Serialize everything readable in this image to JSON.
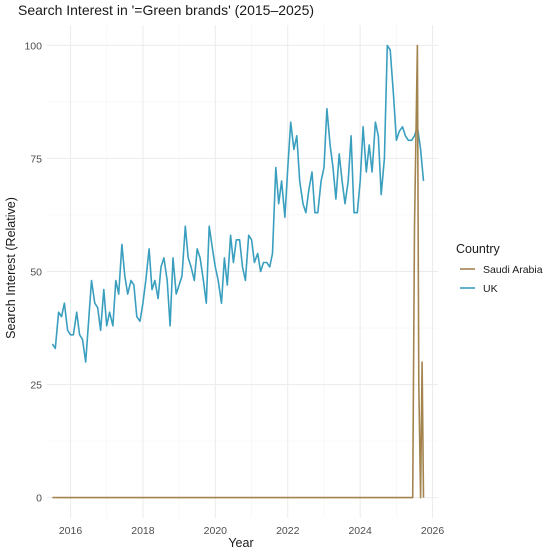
{
  "chart_data": {
    "type": "line",
    "title": "Search Interest in '=Green brands' (2015–2025)",
    "xlabel": "Year",
    "ylabel": "Search Interest (Relative)",
    "xlim": [
      2015.35,
      2026.15
    ],
    "ylim": [
      -4.5,
      104.5
    ],
    "x_ticks": [
      2016,
      2018,
      2020,
      2022,
      2024,
      2026
    ],
    "y_ticks": [
      0,
      25,
      50,
      75,
      100
    ],
    "grid": true,
    "legend": {
      "title": "Country",
      "placement": "right"
    },
    "series": [
      {
        "name": "Saudi Arabia",
        "color": "#a3844e",
        "x": [
          2015.5,
          2025.45,
          2025.5,
          2025.58,
          2025.62,
          2025.67,
          2025.71,
          2025.75
        ],
        "y": [
          0,
          0,
          60,
          100,
          25,
          0,
          30,
          0
        ]
      },
      {
        "name": "UK",
        "color": "#3a9fbf",
        "x": [
          2015.5,
          2015.58,
          2015.67,
          2015.75,
          2015.83,
          2015.92,
          2016.0,
          2016.08,
          2016.17,
          2016.25,
          2016.33,
          2016.42,
          2016.5,
          2016.58,
          2016.67,
          2016.75,
          2016.83,
          2016.92,
          2017.0,
          2017.08,
          2017.17,
          2017.25,
          2017.33,
          2017.42,
          2017.5,
          2017.58,
          2017.67,
          2017.75,
          2017.83,
          2017.92,
          2018.0,
          2018.08,
          2018.17,
          2018.25,
          2018.33,
          2018.42,
          2018.5,
          2018.58,
          2018.67,
          2018.75,
          2018.83,
          2018.92,
          2019.0,
          2019.08,
          2019.17,
          2019.25,
          2019.33,
          2019.42,
          2019.5,
          2019.58,
          2019.67,
          2019.75,
          2019.83,
          2019.92,
          2020.0,
          2020.08,
          2020.17,
          2020.25,
          2020.33,
          2020.42,
          2020.5,
          2020.58,
          2020.67,
          2020.75,
          2020.83,
          2020.92,
          2021.0,
          2021.08,
          2021.17,
          2021.25,
          2021.33,
          2021.42,
          2021.5,
          2021.58,
          2021.67,
          2021.75,
          2021.83,
          2021.92,
          2022.0,
          2022.08,
          2022.17,
          2022.25,
          2022.33,
          2022.42,
          2022.5,
          2022.58,
          2022.67,
          2022.75,
          2022.83,
          2022.92,
          2023.0,
          2023.08,
          2023.17,
          2023.25,
          2023.33,
          2023.42,
          2023.5,
          2023.58,
          2023.67,
          2023.75,
          2023.83,
          2023.92,
          2024.0,
          2024.08,
          2024.17,
          2024.25,
          2024.33,
          2024.42,
          2024.5,
          2024.58,
          2024.67,
          2024.75,
          2024.83,
          2024.92,
          2025.0,
          2025.08,
          2025.17,
          2025.25,
          2025.33,
          2025.42,
          2025.5,
          2025.58,
          2025.67,
          2025.75
        ],
        "y": [
          34,
          33,
          41,
          40,
          43,
          37,
          36,
          36,
          41,
          36,
          35,
          30,
          39,
          48,
          43,
          42,
          37,
          46,
          38,
          41,
          38,
          48,
          45,
          56,
          49,
          45,
          48,
          47,
          40,
          39,
          43,
          48,
          55,
          46,
          48,
          44,
          51,
          53,
          48,
          38,
          53,
          45,
          47,
          49,
          60,
          53,
          51,
          48,
          55,
          53,
          48,
          43,
          60,
          55,
          51,
          48,
          43,
          53,
          47,
          58,
          52,
          57,
          57,
          51,
          48,
          58,
          57,
          52,
          54,
          50,
          52,
          52,
          51,
          54,
          73,
          65,
          70,
          62,
          73,
          83,
          77,
          80,
          70,
          65,
          63,
          68,
          72,
          63,
          63,
          70,
          73,
          86,
          78,
          73,
          66,
          76,
          70,
          65,
          70,
          80,
          63,
          63,
          70,
          82,
          72,
          78,
          72,
          83,
          80,
          67,
          75,
          100,
          99,
          89,
          79,
          81,
          82,
          80,
          79,
          79,
          80,
          82,
          77,
          70
        ]
      }
    ]
  }
}
